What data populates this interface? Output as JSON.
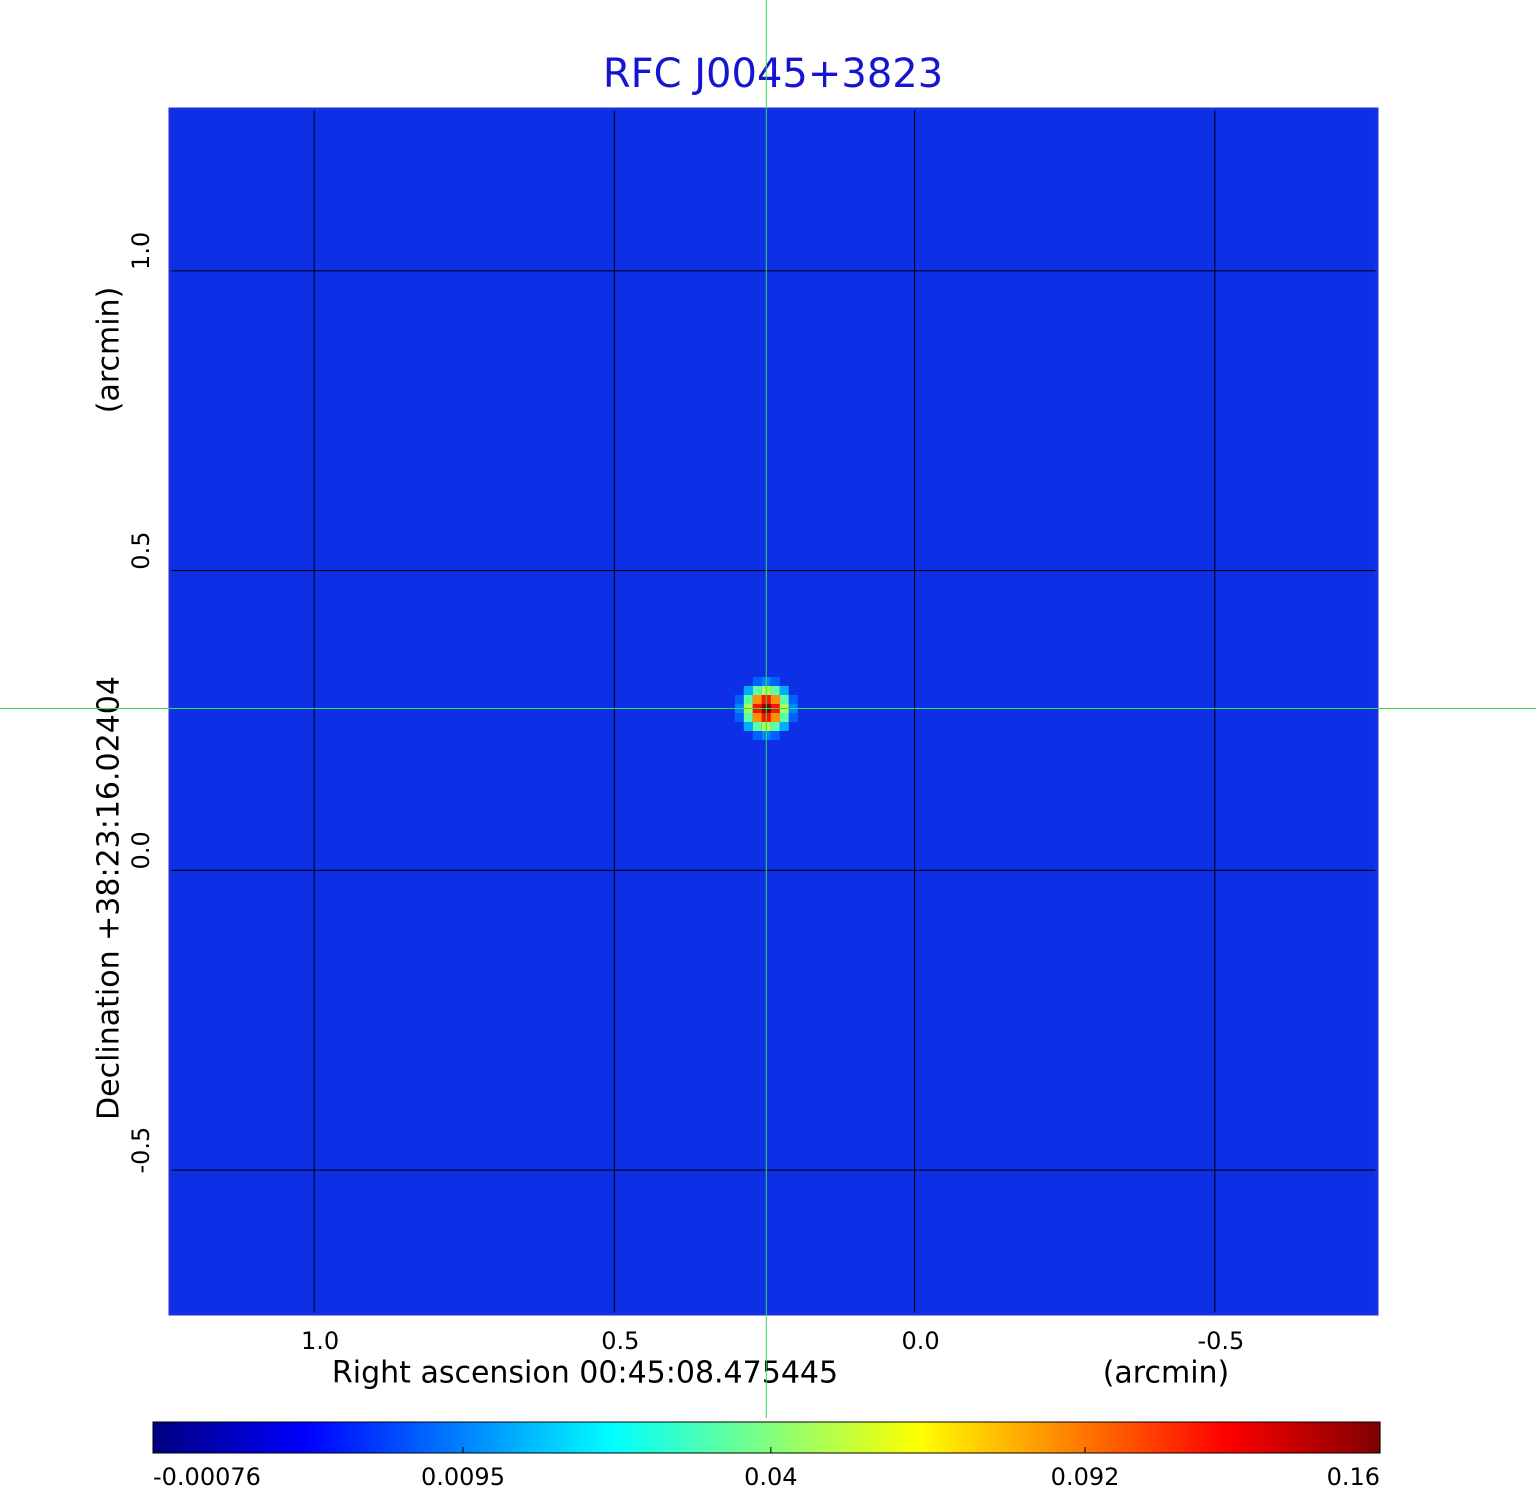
{
  "chart_data": {
    "type": "image",
    "title": "RFC J0045+3823",
    "x_label": "Right ascension  00:45:08.475445",
    "x_unit": "(arcmin)",
    "y_label": "Declination  +38:23:16.02404",
    "y_unit": "(arcmin)",
    "xlim": [
      1.24,
      -0.77
    ],
    "ylim": [
      -0.74,
      1.27
    ],
    "xticks": [
      {
        "value": 1,
        "label": "1.0"
      },
      0.5,
      {
        "value": 0,
        "label": "0.0"
      },
      -0.5
    ],
    "yticks": [
      -0.5,
      {
        "value": 0,
        "label": "0.0"
      },
      0.5,
      {
        "value": 1,
        "label": "1.0"
      }
    ],
    "grid": true,
    "colormap": "jet",
    "color_scale": "sqrt",
    "clim": [
      -0.00076,
      0.16
    ],
    "cticks": [
      -0.00076,
      0.0095,
      0.04,
      0.092,
      0.16
    ],
    "source": {
      "x": 0.247,
      "y": 0.27,
      "peak": 0.16
    },
    "crosshair": {
      "x": 0.247,
      "y": 0.27
    }
  }
}
